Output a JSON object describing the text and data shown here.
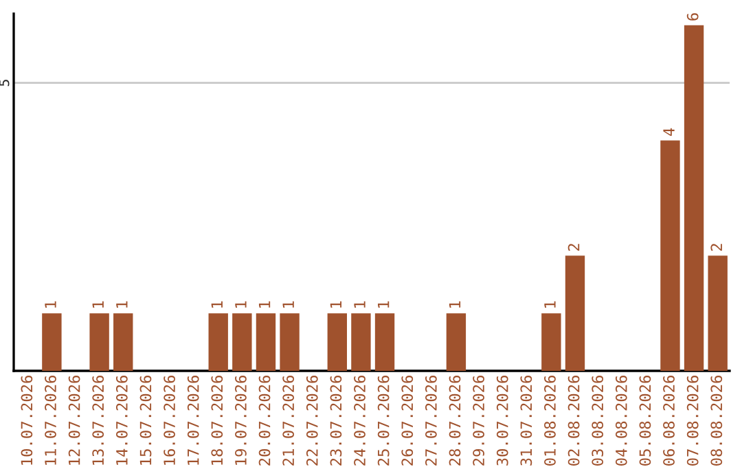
{
  "chart_data": {
    "type": "bar",
    "categories": [
      "10.07.2026",
      "11.07.2026",
      "12.07.2026",
      "13.07.2026",
      "14.07.2026",
      "15.07.2026",
      "16.07.2026",
      "17.07.2026",
      "18.07.2026",
      "19.07.2026",
      "20.07.2026",
      "21.07.2026",
      "22.07.2026",
      "23.07.2026",
      "24.07.2026",
      "25.07.2026",
      "26.07.2026",
      "27.07.2026",
      "28.07.2026",
      "29.07.2026",
      "30.07.2026",
      "31.07.2026",
      "01.08.2026",
      "02.08.2026",
      "03.08.2026",
      "04.08.2026",
      "05.08.2026",
      "06.08.2026",
      "07.08.2026",
      "08.08.2026"
    ],
    "values": [
      0,
      1,
      0,
      1,
      1,
      0,
      0,
      0,
      1,
      1,
      1,
      1,
      0,
      1,
      1,
      1,
      0,
      0,
      1,
      0,
      0,
      0,
      1,
      2,
      0,
      0,
      0,
      4,
      6,
      2
    ],
    "value_labels": [
      null,
      "1",
      null,
      "1",
      "1",
      null,
      null,
      null,
      "1",
      "1",
      "1",
      "1",
      null,
      "1",
      "1",
      "1",
      null,
      null,
      "1",
      null,
      null,
      null,
      "1",
      "2",
      null,
      null,
      null,
      "4",
      "6",
      "2"
    ],
    "color": "#a0522d",
    "ylim": [
      0,
      6.2
    ],
    "yticks": [
      5
    ],
    "grid": "y"
  }
}
